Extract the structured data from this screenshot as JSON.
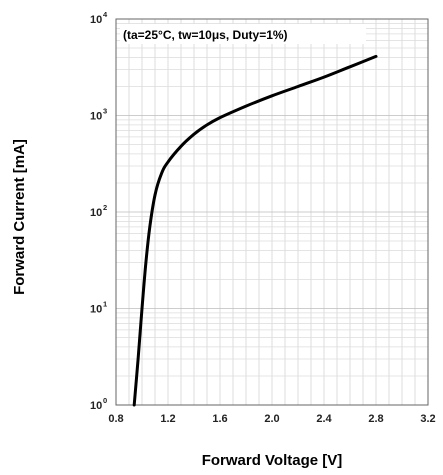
{
  "chart_data": {
    "type": "line",
    "annotation": "(ta=25°C, tw=10μs, Duty=1%)",
    "xlabel": "Forward Voltage [V]",
    "ylabel": "Forward Current [mA]",
    "xlim": [
      0.8,
      3.2
    ],
    "ylim": [
      1,
      10000
    ],
    "yscale": "log",
    "x_ticks": [
      "0.8",
      "1.2",
      "1.6",
      "2.0",
      "2.4",
      "2.8",
      "3.2"
    ],
    "y_ticks": [
      {
        "base": "10",
        "exp": "0"
      },
      {
        "base": "10",
        "exp": "1"
      },
      {
        "base": "10",
        "exp": "2"
      },
      {
        "base": "10",
        "exp": "3"
      },
      {
        "base": "10",
        "exp": "4"
      }
    ],
    "grid": true,
    "series": [
      {
        "color": "#000000",
        "x": [
          0.94,
          0.97,
          1.0,
          1.03,
          1.06,
          1.1,
          1.15,
          1.2,
          1.3,
          1.4,
          1.5,
          1.6,
          1.8,
          2.0,
          2.2,
          2.4,
          2.6,
          2.8
        ],
        "y": [
          1.0,
          3.0,
          10,
          30,
          70,
          150,
          250,
          330,
          480,
          640,
          800,
          950,
          1250,
          1600,
          2000,
          2500,
          3200,
          4100
        ]
      }
    ]
  }
}
